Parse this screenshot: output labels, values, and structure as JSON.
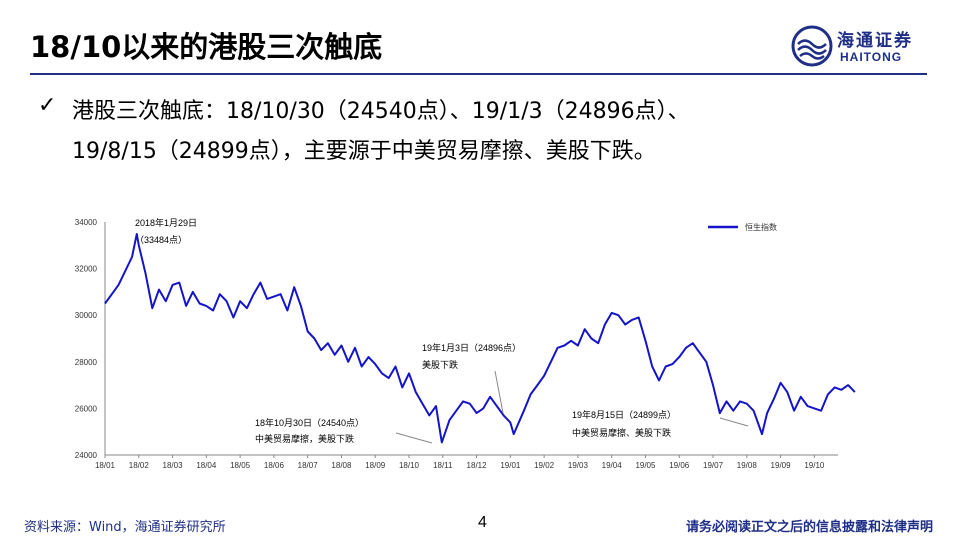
{
  "slide": {
    "title": "18/10以来的港股三次触底",
    "logo_cn": "海通证券",
    "logo_en": "HAITONG",
    "bullet_line1": "港股三次触底：18/10/30（24540点）、19/1/3（24896点）、",
    "bullet_line2": "19/8/15（24899点），主要源于中美贸易摩擦、美股下跌。",
    "source": "资料来源：Wind，海通证券研究所",
    "page_number": "4",
    "disclaimer": "请务必阅读正文之后的信息披露和法律声明",
    "accent_color": "#1f2f86",
    "line_color": "#1414c8",
    "check_icon": "check-mark-icon"
  },
  "chart_data": {
    "type": "line",
    "title": "",
    "xlabel": "",
    "ylabel": "",
    "ylim": [
      24000,
      34000
    ],
    "yticks": [
      "24000",
      "26000",
      "28000",
      "30000",
      "32000",
      "34000"
    ],
    "grid": false,
    "legend_position": "top-right",
    "categories": [
      "18/01",
      "18/02",
      "18/03",
      "18/04",
      "18/05",
      "18/06",
      "18/07",
      "18/08",
      "18/09",
      "18/10",
      "18/11",
      "18/12",
      "19/01",
      "19/02",
      "19/03",
      "19/04",
      "19/05",
      "19/06",
      "19/07",
      "19/08",
      "19/09",
      "19/10"
    ],
    "series": [
      {
        "name": "恒生指数",
        "x": [
          0.0,
          0.2,
          0.4,
          0.6,
          0.8,
          0.94,
          1.0,
          1.2,
          1.4,
          1.6,
          1.8,
          2.0,
          2.2,
          2.4,
          2.6,
          2.8,
          3.0,
          3.2,
          3.4,
          3.6,
          3.8,
          4.0,
          4.2,
          4.4,
          4.6,
          4.8,
          5.0,
          5.2,
          5.4,
          5.6,
          5.8,
          6.0,
          6.2,
          6.4,
          6.6,
          6.8,
          7.0,
          7.2,
          7.4,
          7.6,
          7.8,
          8.0,
          8.2,
          8.4,
          8.6,
          8.8,
          9.0,
          9.2,
          9.4,
          9.6,
          9.8,
          9.97,
          10.2,
          10.4,
          10.6,
          10.8,
          11.0,
          11.2,
          11.4,
          11.6,
          11.8,
          12.0,
          12.1,
          12.4,
          12.6,
          12.8,
          13.0,
          13.2,
          13.4,
          13.6,
          13.8,
          14.0,
          14.2,
          14.4,
          14.6,
          14.8,
          15.0,
          15.2,
          15.4,
          15.6,
          15.8,
          16.0,
          16.2,
          16.4,
          16.6,
          16.8,
          17.0,
          17.2,
          17.4,
          17.6,
          17.8,
          18.0,
          18.2,
          18.4,
          18.6,
          18.8,
          19.0,
          19.2,
          19.45,
          19.6,
          19.8,
          20.0,
          20.2,
          20.4,
          20.6,
          20.8,
          21.0,
          21.2,
          21.4,
          21.6,
          21.8,
          22.0,
          22.2
        ],
        "values": [
          30500,
          30900,
          31300,
          31900,
          32500,
          33484,
          33000,
          31800,
          30300,
          31100,
          30600,
          31300,
          31400,
          30400,
          31000,
          30500,
          30400,
          30200,
          30900,
          30600,
          29900,
          30600,
          30300,
          30900,
          31400,
          30700,
          30800,
          30900,
          30200,
          31200,
          30400,
          29300,
          29000,
          28500,
          28800,
          28300,
          28700,
          28000,
          28600,
          27800,
          28200,
          27900,
          27500,
          27300,
          27800,
          26900,
          27500,
          26700,
          26200,
          25700,
          26100,
          24540,
          25500,
          25900,
          26300,
          26200,
          25800,
          26000,
          26500,
          26100,
          25700,
          25400,
          24896,
          25900,
          26600,
          27000,
          27400,
          28000,
          28600,
          28700,
          28900,
          28700,
          29400,
          29000,
          28800,
          29600,
          30100,
          30000,
          29600,
          29800,
          29900,
          28900,
          27800,
          27200,
          27800,
          27900,
          28200,
          28600,
          28800,
          28400,
          28000,
          27000,
          25800,
          26300,
          25900,
          26300,
          26200,
          25900,
          24899,
          25800,
          26400,
          27100,
          26700,
          25900,
          26500,
          26100,
          26000,
          25900,
          26600,
          26900,
          26800,
          27000,
          26700
        ]
      }
    ],
    "annotations": [
      {
        "line1": "2018年1月29日",
        "line2": "（33484点）"
      },
      {
        "line1": "18年10月30日（24540点）",
        "line2": "中美贸易摩擦，美股下跌"
      },
      {
        "line1": "19年1月3日（24896点）",
        "line2": "美股下跌"
      },
      {
        "line1": "19年8月15日（24899点）",
        "line2": "中美贸易摩擦、美股下跌"
      }
    ]
  }
}
